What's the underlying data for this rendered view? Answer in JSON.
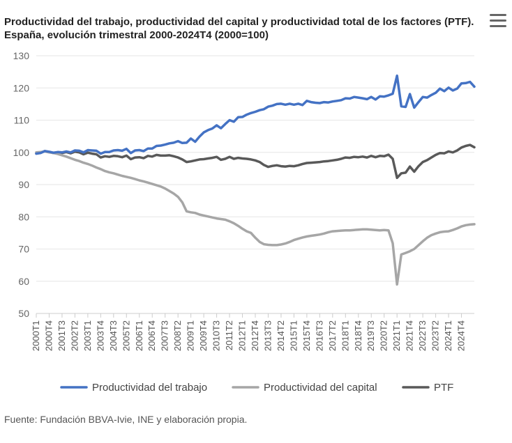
{
  "header": {
    "title": "Productividad del trabajo, productividad del capital y productividad total de los factores (PTF). España, evolución trimestral 2000-2024T4 (2000=100)",
    "menu_icon": "hamburger-menu-icon"
  },
  "footer": {
    "source": "Fuente: Fundación BBVA-Ivie, INE y elaboración propia."
  },
  "chart_data": {
    "type": "line",
    "title": "Productividad del trabajo, productividad del capital y productividad total de los factores (PTF). España, evolución trimestral 2000-2024T4 (2000=100)",
    "ylim": [
      50,
      130
    ],
    "yticks": [
      50,
      60,
      70,
      80,
      90,
      100,
      110,
      120,
      130
    ],
    "grid": true,
    "legend_position": "bottom",
    "x_tick_labels": [
      "2000T1",
      "2000T4",
      "2001T3",
      "2002T2",
      "2003T1",
      "2003T4",
      "2004T3",
      "2005T2",
      "2006T1",
      "2006T4",
      "2007T3",
      "2008T2",
      "2009T1",
      "2009T4",
      "2010T3",
      "2011T2",
      "2012T1",
      "2012T4",
      "2013T3",
      "2014T2",
      "2015T1",
      "2015T4",
      "2016T3",
      "2017T2",
      "2018T1",
      "2018T4",
      "2019T3",
      "2020T2",
      "2021T1",
      "2021T4",
      "2022T3",
      "2023T2",
      "2024T1",
      "2024T4"
    ],
    "x_start": "2000T1",
    "x_end": "2024T4",
    "series": [
      {
        "name": "Productividad del trabajo",
        "color": "#4472c4",
        "values": [
          99.6,
          99.8,
          100.4,
          100.2,
          99.9,
          100.1,
          100.0,
          100.3,
          100.0,
          100.6,
          100.5,
          100.0,
          100.7,
          100.6,
          100.5,
          99.6,
          100.1,
          100.1,
          100.6,
          100.7,
          100.5,
          101.1,
          99.8,
          100.6,
          100.7,
          100.4,
          101.2,
          101.2,
          102.0,
          102.1,
          102.4,
          102.8,
          103.0,
          103.5,
          102.9,
          103.0,
          104.3,
          103.3,
          104.9,
          106.2,
          106.9,
          107.4,
          108.4,
          107.5,
          108.8,
          110.0,
          109.5,
          110.9,
          111.0,
          111.7,
          112.2,
          112.6,
          113.1,
          113.4,
          114.2,
          114.5,
          115.0,
          115.1,
          114.8,
          115.1,
          114.8,
          115.1,
          114.7,
          116.0,
          115.6,
          115.4,
          115.3,
          115.6,
          115.5,
          115.8,
          116.0,
          116.2,
          116.8,
          116.7,
          117.2,
          117.0,
          116.8,
          116.5,
          117.2,
          116.4,
          117.4,
          117.3,
          117.7,
          118.2,
          123.8,
          114.3,
          114.1,
          118.1,
          113.9,
          115.6,
          117.2,
          117.0,
          117.8,
          118.5,
          119.8,
          119.0,
          120.1,
          119.2,
          119.8,
          121.4,
          121.5,
          121.9,
          120.4
        ]
      },
      {
        "name": "Productividad del capital",
        "color": "#a6a6a6",
        "values": [
          100.0,
          100.1,
          100.3,
          100.0,
          99.8,
          99.5,
          99.1,
          98.7,
          98.2,
          97.7,
          97.3,
          96.8,
          96.4,
          95.9,
          95.3,
          94.8,
          94.2,
          93.8,
          93.5,
          93.1,
          92.7,
          92.4,
          92.1,
          91.7,
          91.3,
          91.0,
          90.6,
          90.2,
          89.8,
          89.4,
          88.8,
          88.0,
          87.2,
          86.2,
          84.5,
          81.7,
          81.4,
          81.2,
          80.7,
          80.4,
          80.1,
          79.8,
          79.5,
          79.3,
          79.1,
          78.6,
          78.0,
          77.2,
          76.3,
          75.5,
          75.0,
          73.5,
          72.2,
          71.5,
          71.3,
          71.2,
          71.2,
          71.4,
          71.7,
          72.2,
          72.8,
          73.2,
          73.6,
          73.9,
          74.1,
          74.3,
          74.5,
          74.8,
          75.2,
          75.5,
          75.6,
          75.7,
          75.8,
          75.8,
          75.9,
          76.0,
          76.1,
          76.1,
          76.0,
          75.9,
          75.8,
          75.9,
          75.8,
          71.8,
          59.0,
          68.3,
          68.8,
          69.3,
          70.0,
          71.2,
          72.4,
          73.5,
          74.3,
          74.8,
          75.2,
          75.4,
          75.5,
          75.9,
          76.4,
          77.0,
          77.4,
          77.6,
          77.7
        ]
      },
      {
        "name": "PTF",
        "color": "#595959",
        "values": [
          99.7,
          99.9,
          100.4,
          100.1,
          99.8,
          100.0,
          99.8,
          100.1,
          99.7,
          100.2,
          100.0,
          99.4,
          99.9,
          99.6,
          99.4,
          98.4,
          98.8,
          98.6,
          98.9,
          98.8,
          98.5,
          99.0,
          97.9,
          98.4,
          98.5,
          98.2,
          98.9,
          98.7,
          99.2,
          99.0,
          99.0,
          99.1,
          98.8,
          98.4,
          97.8,
          97.0,
          97.2,
          97.5,
          97.8,
          97.9,
          98.1,
          98.3,
          98.6,
          97.7,
          98.0,
          98.6,
          98.0,
          98.3,
          98.1,
          98.0,
          97.8,
          97.5,
          97.0,
          96.1,
          95.5,
          95.8,
          96.0,
          95.7,
          95.6,
          95.8,
          95.7,
          96.0,
          96.4,
          96.7,
          96.8,
          96.9,
          97.0,
          97.2,
          97.3,
          97.5,
          97.7,
          98.0,
          98.4,
          98.3,
          98.6,
          98.5,
          98.7,
          98.4,
          98.9,
          98.5,
          98.9,
          98.8,
          99.3,
          98.0,
          92.1,
          93.5,
          93.7,
          95.6,
          94.0,
          95.7,
          97.0,
          97.6,
          98.4,
          99.2,
          99.8,
          99.7,
          100.3,
          100.0,
          100.6,
          101.5,
          102.0,
          102.3,
          101.6
        ]
      }
    ]
  }
}
